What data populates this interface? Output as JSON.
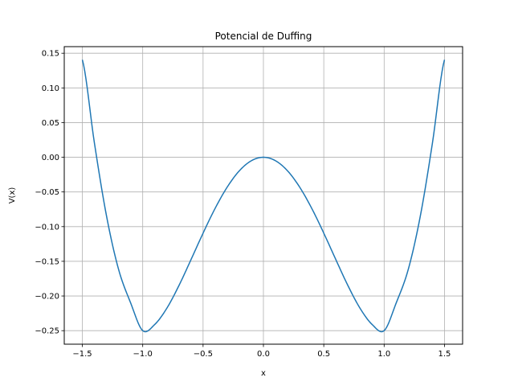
{
  "chart_data": {
    "type": "line",
    "title": "Potencial de Duffing",
    "xlabel": "x",
    "ylabel": "V(x)",
    "xlim": [
      -1.65,
      1.65
    ],
    "ylim": [
      -0.2695,
      0.1595
    ],
    "grid": true,
    "x_ticks": [
      -1.5,
      -1.0,
      -0.5,
      0.0,
      0.5,
      1.0,
      1.5
    ],
    "x_tick_labels": [
      "−1.5",
      "−1.0",
      "−0.5",
      "0.0",
      "0.5",
      "1.0",
      "1.5"
    ],
    "y_ticks": [
      -0.25,
      -0.2,
      -0.15,
      -0.1,
      -0.05,
      0.0,
      0.05,
      0.1,
      0.15
    ],
    "y_tick_labels": [
      "−0.25",
      "−0.20",
      "−0.15",
      "−0.10",
      "−0.05",
      "0.00",
      "0.05",
      "0.10",
      "0.15"
    ],
    "series": [
      {
        "color": "#1f77b4",
        "x": [
          -1.5,
          -1.4,
          -1.3,
          -1.2,
          -1.1,
          -1.0,
          -0.9,
          -0.8,
          -0.7,
          -0.6,
          -0.5,
          -0.4,
          -0.3,
          -0.2,
          -0.1,
          0.0,
          0.1,
          0.2,
          0.3,
          0.4,
          0.5,
          0.6,
          0.7,
          0.8,
          0.9,
          1.0,
          1.1,
          1.2,
          1.3,
          1.4,
          1.5
        ],
        "y": [
          0.1406,
          0.0204,
          -0.0845,
          -0.1616,
          -0.21,
          -0.25,
          -0.241,
          -0.2176,
          -0.185,
          -0.1476,
          -0.1094,
          -0.0736,
          -0.043,
          -0.0196,
          -0.005,
          0.0,
          -0.005,
          -0.0196,
          -0.043,
          -0.0736,
          -0.1094,
          -0.1476,
          -0.185,
          -0.2176,
          -0.241,
          -0.25,
          -0.21,
          -0.1616,
          -0.0845,
          0.0204,
          0.1406
        ]
      }
    ]
  }
}
